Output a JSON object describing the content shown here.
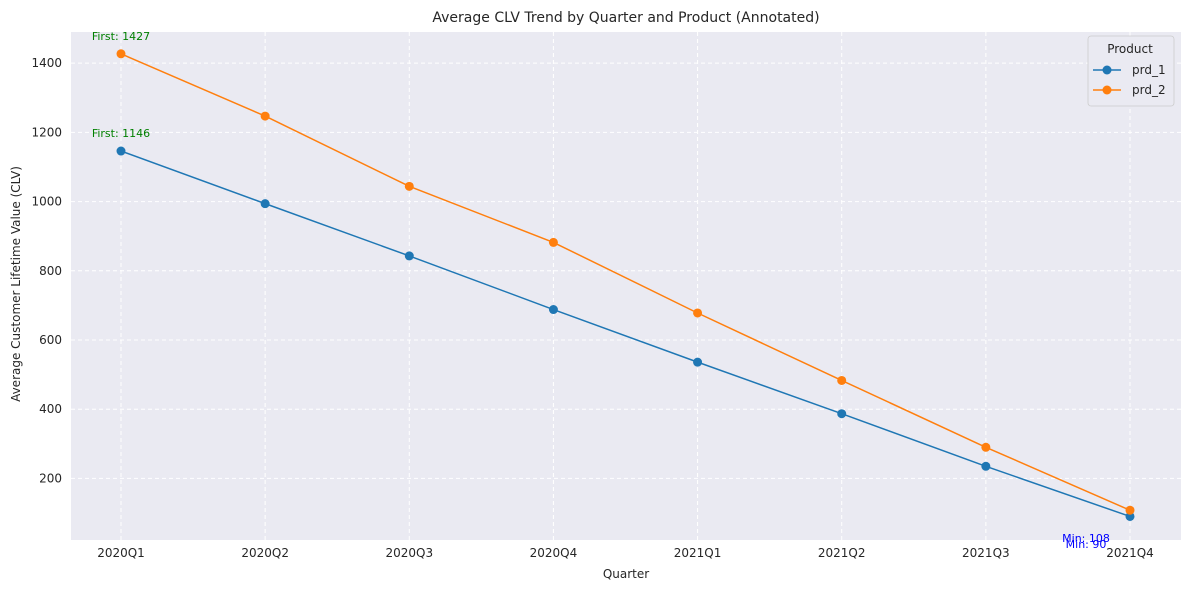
{
  "chart_data": {
    "type": "line",
    "title": "Average CLV Trend by Quarter and Product (Annotated)",
    "xlabel": "Quarter",
    "ylabel": "Average Customer Lifetime Value (CLV)",
    "categories": [
      "2020Q1",
      "2020Q2",
      "2020Q3",
      "2020Q4",
      "2021Q1",
      "2021Q2",
      "2021Q3",
      "2021Q4"
    ],
    "ylim": [
      22,
      1490
    ],
    "yticks": [
      200,
      400,
      600,
      800,
      1000,
      1200,
      1400
    ],
    "grid": true,
    "legend": {
      "title": "Product",
      "placement": "top-right"
    },
    "series": [
      {
        "name": "prd_1",
        "color": "#1f77b4",
        "values": [
          1146,
          994,
          843,
          688,
          536,
          387,
          235,
          90
        ]
      },
      {
        "name": "prd_2",
        "color": "#ff7f0e",
        "values": [
          1427,
          1247,
          1044,
          882,
          678,
          483,
          290,
          108
        ]
      }
    ],
    "annotations": [
      {
        "text": "First: 1427",
        "series": 1,
        "index": 0,
        "color": "#008000"
      },
      {
        "text": "First: 1146",
        "series": 0,
        "index": 0,
        "color": "#008000"
      },
      {
        "text": "Min: 108",
        "series": 1,
        "index": 7,
        "color": "#0000ff"
      },
      {
        "text": "Min: 90",
        "series": 0,
        "index": 7,
        "color": "#0000ff"
      }
    ]
  }
}
